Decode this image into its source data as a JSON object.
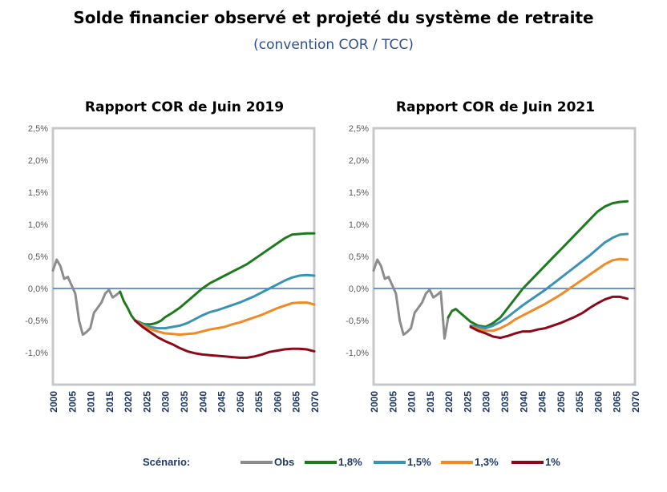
{
  "header": {
    "title": "Solde financier observé et projeté du système de retraite",
    "subtitle": "(convention COR / TCC)"
  },
  "legend": {
    "title": "Scénario:",
    "entries": [
      {
        "label": "Obs",
        "color": "#8c8c8c"
      },
      {
        "label": "1,8%",
        "color": "#1f7a1f"
      },
      {
        "label": "1,5%",
        "color": "#3a93b3"
      },
      {
        "label": "1,3%",
        "color": "#f08a24"
      },
      {
        "label": "1%",
        "color": "#8b0a1a"
      }
    ]
  },
  "chart_data": [
    {
      "type": "line",
      "title": "Rapport COR de Juin 2019",
      "xlabel": "",
      "ylabel": "",
      "xlim": [
        2000,
        2070
      ],
      "ylim": [
        -1.5,
        2.5
      ],
      "x_ticks": [
        "2000",
        "2005",
        "2010",
        "2015",
        "2020",
        "2025",
        "2030",
        "2035",
        "2040",
        "2045",
        "2050",
        "2055",
        "2060",
        "2065",
        "2070"
      ],
      "y_ticks": [
        "2,5%",
        "2,0%",
        "1,5%",
        "1,0%",
        "0,5%",
        "0,0%",
        "-0,5%",
        "-1,0%"
      ],
      "reference_line_y": 0,
      "legend_position": "bottom",
      "series": [
        {
          "name": "Obs",
          "color": "#8c8c8c",
          "x": [
            2000,
            2001,
            2002,
            2003,
            2004,
            2005,
            2006,
            2007,
            2008,
            2009,
            2010,
            2011,
            2012,
            2013,
            2014,
            2015,
            2016,
            2017,
            2018
          ],
          "y": [
            0.28,
            0.45,
            0.35,
            0.15,
            0.18,
            0.05,
            -0.08,
            -0.5,
            -0.72,
            -0.68,
            -0.62,
            -0.38,
            -0.3,
            -0.22,
            -0.08,
            -0.02,
            -0.14,
            -0.1,
            -0.05
          ]
        },
        {
          "name": "1,8%",
          "color": "#1f7a1f",
          "x": [
            2018,
            2019,
            2020,
            2021,
            2022,
            2023,
            2024,
            2025,
            2026,
            2027,
            2028,
            2029,
            2030,
            2032,
            2034,
            2036,
            2038,
            2040,
            2042,
            2044,
            2046,
            2048,
            2050,
            2052,
            2054,
            2056,
            2058,
            2060,
            2062,
            2064,
            2066,
            2068,
            2070
          ],
          "y": [
            -0.05,
            -0.2,
            -0.3,
            -0.42,
            -0.5,
            -0.52,
            -0.55,
            -0.56,
            -0.56,
            -0.55,
            -0.53,
            -0.5,
            -0.45,
            -0.38,
            -0.3,
            -0.2,
            -0.1,
            0.0,
            0.08,
            0.14,
            0.2,
            0.26,
            0.32,
            0.38,
            0.46,
            0.54,
            0.62,
            0.7,
            0.78,
            0.84,
            0.85,
            0.86,
            0.86
          ]
        },
        {
          "name": "1,5%",
          "color": "#3a93b3",
          "x": [
            2022,
            2024,
            2026,
            2028,
            2030,
            2032,
            2034,
            2036,
            2038,
            2040,
            2042,
            2044,
            2046,
            2048,
            2050,
            2052,
            2054,
            2056,
            2058,
            2060,
            2062,
            2064,
            2066,
            2068,
            2070
          ],
          "y": [
            -0.5,
            -0.56,
            -0.6,
            -0.62,
            -0.62,
            -0.6,
            -0.58,
            -0.54,
            -0.48,
            -0.42,
            -0.37,
            -0.34,
            -0.3,
            -0.26,
            -0.22,
            -0.17,
            -0.12,
            -0.06,
            0.0,
            0.06,
            0.12,
            0.17,
            0.2,
            0.21,
            0.2
          ]
        },
        {
          "name": "1,3%",
          "color": "#f08a24",
          "x": [
            2022,
            2024,
            2026,
            2028,
            2030,
            2032,
            2034,
            2036,
            2038,
            2040,
            2042,
            2044,
            2046,
            2048,
            2050,
            2052,
            2054,
            2056,
            2058,
            2060,
            2062,
            2064,
            2066,
            2068,
            2070
          ],
          "y": [
            -0.5,
            -0.58,
            -0.63,
            -0.67,
            -0.7,
            -0.71,
            -0.72,
            -0.71,
            -0.7,
            -0.67,
            -0.64,
            -0.62,
            -0.6,
            -0.56,
            -0.53,
            -0.49,
            -0.45,
            -0.41,
            -0.36,
            -0.31,
            -0.27,
            -0.23,
            -0.22,
            -0.22,
            -0.25
          ]
        },
        {
          "name": "1%",
          "color": "#8b0a1a",
          "x": [
            2022,
            2024,
            2026,
            2028,
            2030,
            2032,
            2034,
            2036,
            2038,
            2040,
            2042,
            2044,
            2046,
            2048,
            2050,
            2052,
            2054,
            2056,
            2058,
            2060,
            2062,
            2064,
            2066,
            2068,
            2070
          ],
          "y": [
            -0.5,
            -0.6,
            -0.68,
            -0.76,
            -0.82,
            -0.87,
            -0.93,
            -0.98,
            -1.01,
            -1.03,
            -1.04,
            -1.05,
            -1.06,
            -1.07,
            -1.08,
            -1.08,
            -1.06,
            -1.03,
            -0.99,
            -0.97,
            -0.95,
            -0.94,
            -0.94,
            -0.95,
            -0.98
          ]
        }
      ]
    },
    {
      "type": "line",
      "title": "Rapport COR de Juin 2021",
      "xlabel": "",
      "ylabel": "",
      "xlim": [
        2000,
        2070
      ],
      "ylim": [
        -1.5,
        2.5
      ],
      "x_ticks": [
        "2000",
        "2005",
        "2010",
        "2015",
        "2020",
        "2025",
        "2030",
        "2035",
        "2040",
        "2045",
        "2050",
        "2055",
        "2060",
        "2065",
        "2070"
      ],
      "y_ticks": [
        "2,5%",
        "2,0%",
        "1,5%",
        "1,0%",
        "0,5%",
        "0,0%",
        "-0,5%",
        "-1,0%"
      ],
      "reference_line_y": 0,
      "legend_position": "bottom",
      "series": [
        {
          "name": "Obs",
          "color": "#8c8c8c",
          "x": [
            2000,
            2001,
            2002,
            2003,
            2004,
            2005,
            2006,
            2007,
            2008,
            2009,
            2010,
            2011,
            2012,
            2013,
            2014,
            2015,
            2016,
            2017,
            2018,
            2019,
            2020
          ],
          "y": [
            0.28,
            0.45,
            0.35,
            0.15,
            0.18,
            0.05,
            -0.08,
            -0.5,
            -0.72,
            -0.68,
            -0.62,
            -0.38,
            -0.3,
            -0.22,
            -0.08,
            -0.02,
            -0.14,
            -0.1,
            -0.05,
            -0.78,
            -0.45
          ]
        },
        {
          "name": "1,8%",
          "color": "#1f7a1f",
          "x": [
            2020,
            2021,
            2022,
            2024,
            2026,
            2028,
            2030,
            2032,
            2034,
            2036,
            2038,
            2040,
            2042,
            2044,
            2046,
            2048,
            2050,
            2052,
            2054,
            2056,
            2058,
            2060,
            2062,
            2064,
            2066,
            2068
          ],
          "y": [
            -0.45,
            -0.35,
            -0.32,
            -0.42,
            -0.52,
            -0.58,
            -0.6,
            -0.54,
            -0.45,
            -0.3,
            -0.15,
            0.0,
            0.12,
            0.24,
            0.36,
            0.48,
            0.6,
            0.72,
            0.84,
            0.96,
            1.08,
            1.2,
            1.28,
            1.33,
            1.35,
            1.36
          ]
        },
        {
          "name": "1,5%",
          "color": "#3a93b3",
          "x": [
            2026,
            2028,
            2030,
            2032,
            2034,
            2036,
            2038,
            2040,
            2042,
            2044,
            2046,
            2048,
            2050,
            2052,
            2054,
            2056,
            2058,
            2060,
            2062,
            2064,
            2066,
            2068
          ],
          "y": [
            -0.58,
            -0.6,
            -0.62,
            -0.58,
            -0.52,
            -0.44,
            -0.35,
            -0.26,
            -0.18,
            -0.1,
            -0.02,
            0.07,
            0.16,
            0.25,
            0.34,
            0.43,
            0.52,
            0.62,
            0.72,
            0.79,
            0.84,
            0.85
          ]
        },
        {
          "name": "1,3%",
          "color": "#f08a24",
          "x": [
            2026,
            2028,
            2030,
            2032,
            2034,
            2036,
            2038,
            2040,
            2042,
            2044,
            2046,
            2048,
            2050,
            2052,
            2054,
            2056,
            2058,
            2060,
            2062,
            2064,
            2066,
            2068
          ],
          "y": [
            -0.6,
            -0.63,
            -0.66,
            -0.66,
            -0.62,
            -0.56,
            -0.48,
            -0.42,
            -0.36,
            -0.3,
            -0.24,
            -0.17,
            -0.1,
            -0.02,
            0.06,
            0.14,
            0.22,
            0.3,
            0.38,
            0.44,
            0.46,
            0.45
          ]
        },
        {
          "name": "1%",
          "color": "#8b0a1a",
          "x": [
            2026,
            2028,
            2030,
            2032,
            2034,
            2036,
            2038,
            2040,
            2042,
            2044,
            2046,
            2048,
            2050,
            2052,
            2054,
            2056,
            2058,
            2060,
            2062,
            2064,
            2066,
            2068
          ],
          "y": [
            -0.6,
            -0.66,
            -0.7,
            -0.75,
            -0.77,
            -0.74,
            -0.7,
            -0.67,
            -0.67,
            -0.64,
            -0.62,
            -0.58,
            -0.54,
            -0.49,
            -0.44,
            -0.38,
            -0.3,
            -0.23,
            -0.17,
            -0.13,
            -0.13,
            -0.16
          ]
        }
      ]
    }
  ]
}
